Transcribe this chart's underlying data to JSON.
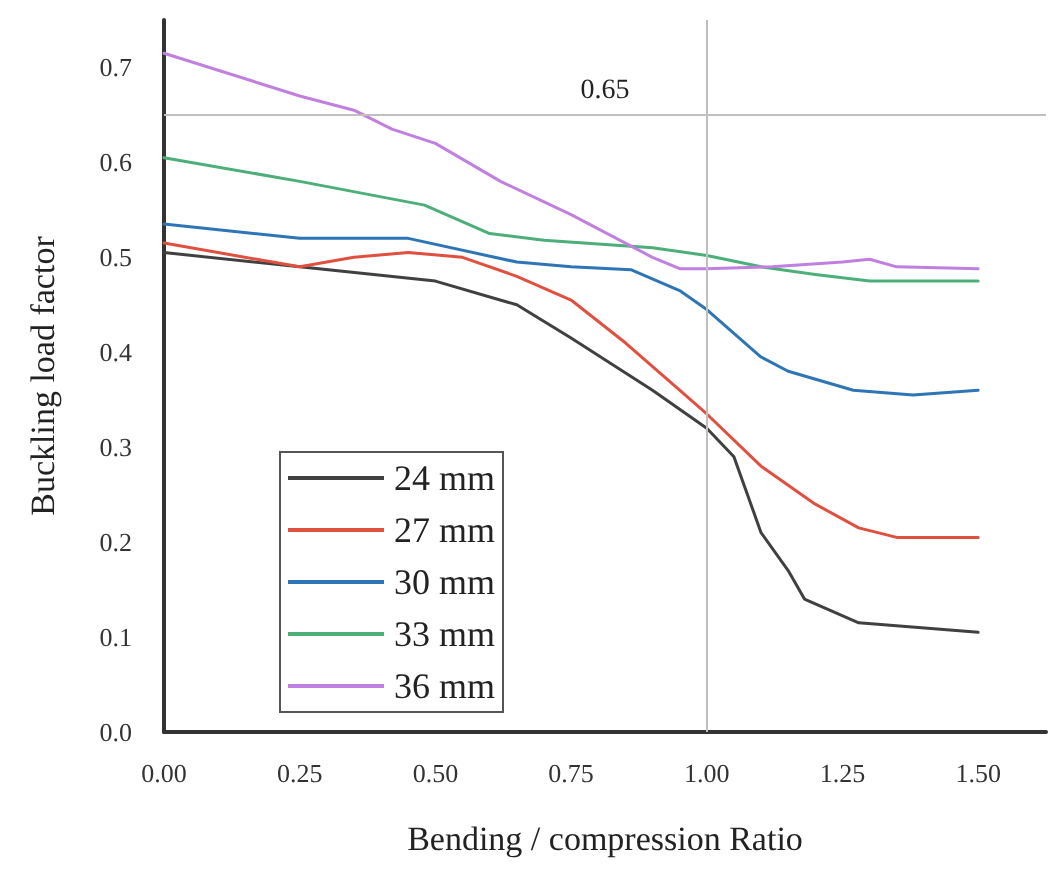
{
  "chart_data": {
    "type": "line",
    "xlabel": "Bending / compression Ratio",
    "ylabel": "Buckling load factor",
    "xlim": [
      0,
      1.625
    ],
    "xticks": [
      {
        "value": 0,
        "label": "0.00"
      },
      {
        "value": 0.25,
        "label": "0.25"
      },
      {
        "value": 0.5,
        "label": "0.50"
      },
      {
        "value": 0.75,
        "label": "0.75"
      },
      {
        "value": 1,
        "label": "1.00"
      },
      {
        "value": 1.25,
        "label": "1.25"
      },
      {
        "value": 1.5,
        "label": "1.50"
      }
    ],
    "ylim": [
      0,
      0.75
    ],
    "yticks": [
      {
        "value": 0,
        "label": "0.0"
      },
      {
        "value": 0.1,
        "label": "0.1"
      },
      {
        "value": 0.2,
        "label": "0.2"
      },
      {
        "value": 0.3,
        "label": "0.3"
      },
      {
        "value": 0.4,
        "label": "0.4"
      },
      {
        "value": 0.5,
        "label": "0.5"
      },
      {
        "value": 0.6,
        "label": "0.6"
      },
      {
        "value": 0.7,
        "label": "0.7"
      }
    ],
    "grid": false,
    "legend": "bottom left",
    "marker": "none",
    "line_style": "solid",
    "ref_lines": [
      {
        "axis": "y",
        "value": 0.65,
        "label": "0.65",
        "color": "#bfbfbf"
      },
      {
        "axis": "x",
        "value": 1,
        "color": "#bfbfbf"
      }
    ],
    "series": [
      {
        "name": "24 mm",
        "color": "#404040",
        "x": [
          0,
          0.25,
          0.5,
          0.65,
          0.75,
          0.9,
          1,
          1.05,
          1.1,
          1.15,
          1.18,
          1.28,
          1.5
        ],
        "values": [
          0.505,
          0.49,
          0.475,
          0.45,
          0.415,
          0.36,
          0.32,
          0.29,
          0.21,
          0.17,
          0.14,
          0.115,
          0.105
        ]
      },
      {
        "name": "27 mm",
        "color": "#e05040",
        "x": [
          0,
          0.25,
          0.35,
          0.45,
          0.55,
          0.65,
          0.75,
          0.85,
          0.95,
          1,
          1.1,
          1.2,
          1.28,
          1.35,
          1.5
        ],
        "values": [
          0.515,
          0.49,
          0.5,
          0.505,
          0.5,
          0.48,
          0.455,
          0.41,
          0.36,
          0.335,
          0.28,
          0.24,
          0.215,
          0.205,
          0.205
        ]
      },
      {
        "name": "30 mm",
        "color": "#2e75b6",
        "x": [
          0,
          0.25,
          0.45,
          0.65,
          0.75,
          0.86,
          0.95,
          1,
          1.1,
          1.15,
          1.27,
          1.38,
          1.5
        ],
        "values": [
          0.535,
          0.52,
          0.52,
          0.495,
          0.49,
          0.487,
          0.465,
          0.445,
          0.395,
          0.38,
          0.36,
          0.355,
          0.36
        ]
      },
      {
        "name": "33 mm",
        "color": "#4caf7a",
        "x": [
          0,
          0.25,
          0.48,
          0.6,
          0.7,
          0.9,
          1,
          1.1,
          1.2,
          1.3,
          1.5
        ],
        "values": [
          0.605,
          0.58,
          0.555,
          0.525,
          0.518,
          0.51,
          0.502,
          0.49,
          0.482,
          0.475,
          0.475
        ]
      },
      {
        "name": "36 mm",
        "color": "#c080e0",
        "x": [
          0,
          0.25,
          0.35,
          0.42,
          0.5,
          0.62,
          0.75,
          0.9,
          0.95,
          1,
          1.12,
          1.25,
          1.3,
          1.35,
          1.5
        ],
        "values": [
          0.715,
          0.67,
          0.655,
          0.635,
          0.62,
          0.58,
          0.545,
          0.5,
          0.488,
          0.488,
          0.49,
          0.495,
          0.498,
          0.49,
          0.488
        ]
      }
    ]
  }
}
